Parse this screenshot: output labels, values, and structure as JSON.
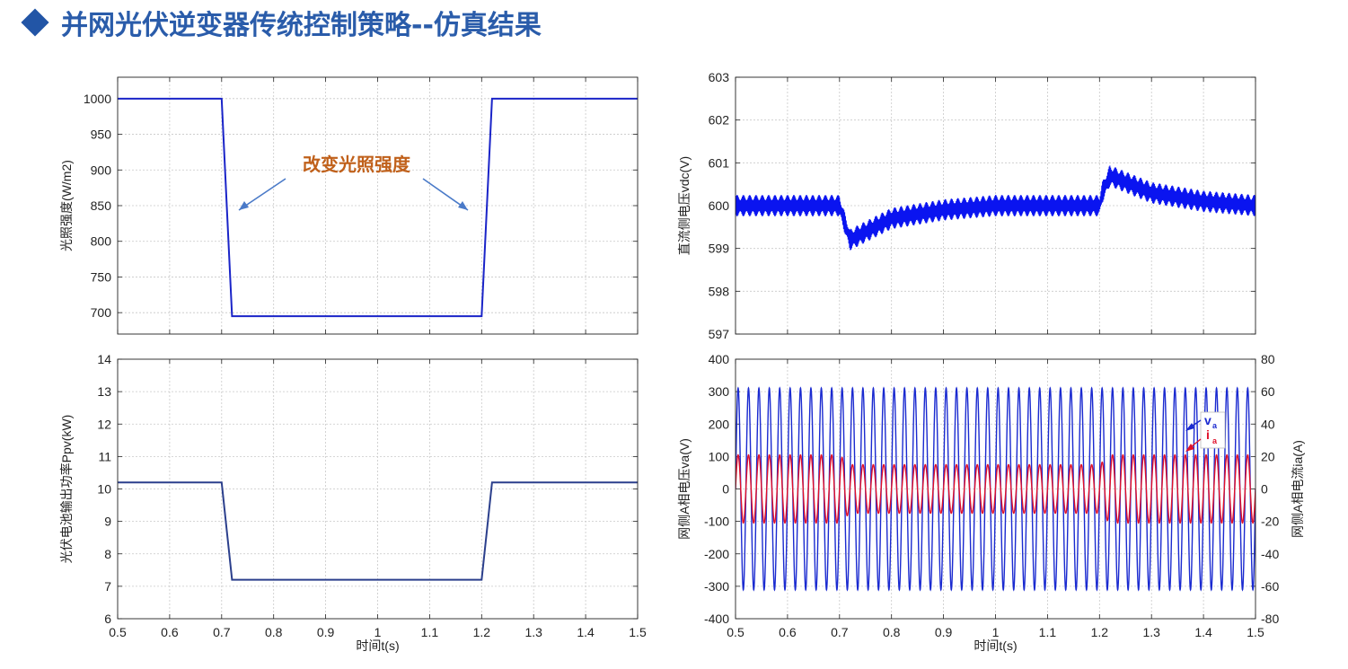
{
  "title": "并网光伏逆变器传统控制策略--仿真结果",
  "colors": {
    "title": "#2a5caa",
    "irradiance": "#1a24c8",
    "power": "#2b3f8c",
    "vdc": "#0a14f0",
    "voltage": "#1a2ad0",
    "current": "#e0102a",
    "annotation": "#c0601a",
    "arrow": "#4a7ac8",
    "grid": "#c8c8c8"
  },
  "annotation_text": "改变光照强度",
  "chart_data": [
    {
      "id": "irradiance",
      "type": "line",
      "ylabel": "光照强度(W/m2)",
      "xlim": [
        0.5,
        1.5
      ],
      "ylim": [
        670,
        1030
      ],
      "yticks": [
        "700",
        "750",
        "800",
        "850",
        "900",
        "950",
        "1000"
      ],
      "grid": true,
      "x": [
        0.5,
        0.7,
        0.72,
        1.2,
        1.22,
        1.5
      ],
      "y": [
        1000,
        1000,
        695,
        695,
        1000,
        1000
      ]
    },
    {
      "id": "pv_power",
      "type": "line",
      "ylabel": "光伏电池输出功率Ppv(kW)",
      "xlabel": "时间t(s)",
      "xlim": [
        0.5,
        1.5
      ],
      "ylim": [
        6,
        14
      ],
      "yticks": [
        "6",
        "7",
        "8",
        "9",
        "10",
        "11",
        "12",
        "13",
        "14"
      ],
      "xticks": [
        "0.5",
        "0.6",
        "0.7",
        "0.8",
        "0.9",
        "1",
        "1.1",
        "1.2",
        "1.3",
        "1.4",
        "1.5"
      ],
      "grid": true,
      "x": [
        0.5,
        0.7,
        0.72,
        1.2,
        1.22,
        1.5
      ],
      "y": [
        10.2,
        10.2,
        7.2,
        7.2,
        10.2,
        10.2
      ]
    },
    {
      "id": "dc_voltage",
      "type": "line",
      "ylabel": "直流侧电压vdc(V)",
      "xlim": [
        0.5,
        1.5
      ],
      "ylim": [
        597,
        603
      ],
      "yticks": [
        "597",
        "598",
        "599",
        "600",
        "601",
        "602",
        "603"
      ],
      "grid": true,
      "x": [
        0.5,
        0.7,
        0.705,
        0.72,
        0.8,
        0.9,
        1.0,
        1.1,
        1.2,
        1.205,
        1.22,
        1.3,
        1.4,
        1.5
      ],
      "y": [
        600.0,
        600.0,
        599.8,
        599.2,
        599.7,
        599.9,
        600.0,
        600.0,
        600.0,
        600.3,
        600.7,
        600.3,
        600.1,
        600.0
      ],
      "ripple_amplitude": 0.25
    },
    {
      "id": "grid_va_ia",
      "type": "line",
      "ylabel": "网侧A相电压va(V)",
      "ylabel_right": "网侧A相电流ia(A)",
      "xlabel": "时间t(s)",
      "xlim": [
        0.5,
        1.5
      ],
      "ylim": [
        -400,
        400
      ],
      "ylim_right": [
        -80,
        80
      ],
      "yticks": [
        "-400",
        "-300",
        "-200",
        "-100",
        "0",
        "100",
        "200",
        "300",
        "400"
      ],
      "yticks_right": [
        "-80",
        "-60",
        "-40",
        "-20",
        "0",
        "20",
        "40",
        "60",
        "80"
      ],
      "xticks": [
        "0.5",
        "0.6",
        "0.7",
        "0.8",
        "0.9",
        "1",
        "1.1",
        "1.2",
        "1.3",
        "1.4",
        "1.5"
      ],
      "grid": true,
      "frequency_hz": 50,
      "series": [
        {
          "name": "va",
          "axis": "left",
          "amplitude": 311
        },
        {
          "name": "ia",
          "axis": "right",
          "amplitude_points": {
            "x": [
              0.5,
              0.7,
              0.72,
              1.2,
              1.22,
              1.5
            ],
            "y": [
              21,
              21,
              15,
              15,
              21,
              21
            ]
          }
        }
      ],
      "legend": {
        "placement": "right",
        "labels": [
          "v",
          "a",
          "i",
          "a"
        ]
      }
    }
  ]
}
